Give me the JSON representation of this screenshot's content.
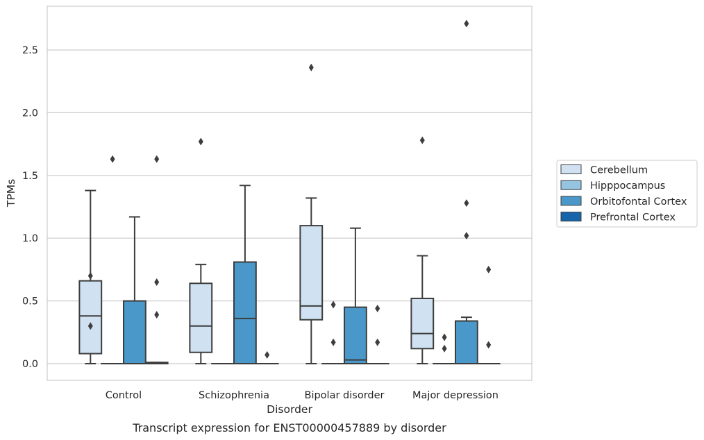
{
  "chart_data": {
    "type": "box",
    "caption": "Transcript expression for ENST00000457889 by disorder",
    "xlabel": "Disorder",
    "ylabel": "TPMs",
    "ylim": [
      -0.13,
      2.86
    ],
    "yticks": [
      "0.0",
      "0.5",
      "1.0",
      "1.5",
      "2.0",
      "2.5"
    ],
    "grid": true,
    "legend_position": "right",
    "categories": [
      "Control",
      "Schizophrenia",
      "Bipolar disorder",
      "Major depression"
    ],
    "series": [
      {
        "name": "Cerebellum",
        "color": "#d0e1f2",
        "boxes": [
          {
            "category": "Control",
            "whislo": 0.0,
            "q1": 0.08,
            "med": 0.38,
            "q3": 0.66,
            "whishi": 1.38,
            "fliers": [
              0.7,
              0.3
            ]
          },
          {
            "category": "Schizophrenia",
            "whislo": 0.0,
            "q1": 0.09,
            "med": 0.3,
            "q3": 0.64,
            "whishi": 0.79,
            "fliers": [
              1.77
            ]
          },
          {
            "category": "Bipolar disorder",
            "whislo": 0.0,
            "q1": 0.35,
            "med": 0.46,
            "q3": 1.1,
            "whishi": 1.32,
            "fliers": [
              2.36
            ]
          },
          {
            "category": "Major depression",
            "whislo": 0.0,
            "q1": 0.12,
            "med": 0.24,
            "q3": 0.52,
            "whishi": 0.86,
            "fliers": [
              1.78
            ]
          }
        ]
      },
      {
        "name": "Hipppocampus",
        "color": "#94c4df",
        "boxes": [
          {
            "category": "Control",
            "whislo": 0.0,
            "q1": 0.0,
            "med": 0.0,
            "q3": 0.0,
            "whishi": 0.0,
            "fliers": [
              1.63
            ]
          },
          {
            "category": "Schizophrenia",
            "whislo": 0.0,
            "q1": 0.0,
            "med": 0.0,
            "q3": 0.0,
            "whishi": 0.0,
            "fliers": []
          },
          {
            "category": "Bipolar disorder",
            "whislo": 0.0,
            "q1": 0.0,
            "med": 0.0,
            "q3": 0.0,
            "whishi": 0.0,
            "fliers": [
              0.47,
              0.17
            ]
          },
          {
            "category": "Major depression",
            "whislo": 0.0,
            "q1": 0.0,
            "med": 0.0,
            "q3": 0.0,
            "whishi": 0.0,
            "fliers": [
              0.21,
              0.12
            ]
          }
        ]
      },
      {
        "name": "Orbitofontal Cortex",
        "color": "#4a98c9",
        "boxes": [
          {
            "category": "Control",
            "whislo": 0.0,
            "q1": 0.0,
            "med": 0.0,
            "q3": 0.5,
            "whishi": 1.17,
            "fliers": []
          },
          {
            "category": "Schizophrenia",
            "whislo": 0.0,
            "q1": 0.0,
            "med": 0.36,
            "q3": 0.81,
            "whishi": 1.42,
            "fliers": []
          },
          {
            "category": "Bipolar disorder",
            "whislo": 0.0,
            "q1": 0.0,
            "med": 0.03,
            "q3": 0.45,
            "whishi": 1.08,
            "fliers": []
          },
          {
            "category": "Major depression",
            "whislo": 0.0,
            "q1": 0.0,
            "med": 0.0,
            "q3": 0.34,
            "whishi": 0.37,
            "fliers": [
              2.71,
              1.28,
              1.02
            ]
          }
        ]
      },
      {
        "name": "Prefrontal Cortex",
        "color": "#1764ab",
        "boxes": [
          {
            "category": "Control",
            "whislo": 0.0,
            "q1": 0.0,
            "med": 0.0,
            "q3": 0.01,
            "whishi": 0.01,
            "fliers": [
              1.63,
              0.65,
              0.39
            ]
          },
          {
            "category": "Schizophrenia",
            "whislo": 0.0,
            "q1": 0.0,
            "med": 0.0,
            "q3": 0.0,
            "whishi": 0.0,
            "fliers": [
              0.07
            ]
          },
          {
            "category": "Bipolar disorder",
            "whislo": 0.0,
            "q1": 0.0,
            "med": 0.0,
            "q3": 0.0,
            "whishi": 0.0,
            "fliers": [
              0.44,
              0.17
            ]
          },
          {
            "category": "Major depression",
            "whislo": 0.0,
            "q1": 0.0,
            "med": 0.0,
            "q3": 0.0,
            "whishi": 0.0,
            "fliers": [
              0.75,
              0.15
            ]
          }
        ]
      }
    ]
  },
  "colors": {
    "grid": "#cccccc",
    "frame": "#cccccc",
    "edge": "#3d3d3d"
  }
}
